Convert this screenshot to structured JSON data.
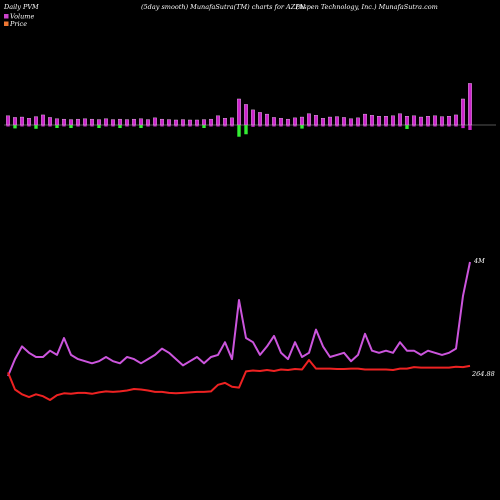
{
  "header": {
    "left": "Daily PVM",
    "center": "(5day smooth) MunafaSutra(TM) charts for AZPN",
    "right": "(Aspen Technology, Inc.) MunafaSutra.com"
  },
  "legend": {
    "volume": "Volume",
    "price": "Price",
    "volume_color": "#cc44cc",
    "price_color": "#ee7733"
  },
  "colors": {
    "background": "#000000",
    "bar_up": "#cc22cc",
    "bar_down": "#33ee33",
    "volume_line": "#cc55dd",
    "price_line": "#ee2222",
    "baseline": "#aaaaaa"
  },
  "chart_data": {
    "type": "line",
    "series": [
      {
        "name": "Volume",
        "unit": "M",
        "label_last": "4M",
        "values": [
          1.3,
          1.7,
          2.0,
          1.85,
          1.75,
          1.75,
          1.9,
          1.8,
          2.2,
          1.8,
          1.7,
          1.65,
          1.6,
          1.65,
          1.75,
          1.65,
          1.6,
          1.75,
          1.7,
          1.6,
          1.7,
          1.8,
          1.95,
          1.85,
          1.7,
          1.55,
          1.65,
          1.75,
          1.6,
          1.75,
          1.8,
          2.1,
          1.7,
          3.1,
          2.2,
          2.1,
          1.8,
          2.0,
          2.25,
          1.85,
          1.7,
          2.1,
          1.75,
          1.85,
          2.4,
          2.0,
          1.75,
          1.8,
          1.85,
          1.65,
          1.8,
          2.3,
          1.9,
          1.85,
          1.9,
          1.85,
          2.1,
          1.9,
          1.9,
          1.8,
          1.9,
          1.85,
          1.8,
          1.85,
          1.95,
          3.2,
          4.0
        ]
      },
      {
        "name": "Price",
        "label_last": "264.88",
        "values": [
          264.2,
          262.4,
          261.9,
          261.6,
          261.9,
          261.7,
          261.3,
          261.8,
          262.0,
          261.95,
          262.05,
          262.05,
          261.95,
          262.1,
          262.2,
          262.15,
          262.2,
          262.3,
          262.45,
          262.4,
          262.3,
          262.15,
          262.15,
          262.05,
          262.0,
          262.05,
          262.1,
          262.15,
          262.15,
          262.2,
          262.9,
          263.1,
          262.7,
          262.6,
          264.3,
          264.4,
          264.35,
          264.45,
          264.35,
          264.5,
          264.45,
          264.55,
          264.5,
          265.5,
          264.6,
          264.6,
          264.6,
          264.55,
          264.55,
          264.6,
          264.6,
          264.5,
          264.5,
          264.5,
          264.5,
          264.45,
          264.6,
          264.6,
          264.75,
          264.7,
          264.7,
          264.7,
          264.7,
          264.7,
          264.8,
          264.75,
          264.88
        ]
      }
    ],
    "volume_bars": {
      "values": [
        0.22,
        0.18,
        0.19,
        0.16,
        0.2,
        0.24,
        0.18,
        0.15,
        0.14,
        0.13,
        0.14,
        0.15,
        0.14,
        0.13,
        0.15,
        0.13,
        0.14,
        0.13,
        0.14,
        0.15,
        0.13,
        0.17,
        0.14,
        0.13,
        0.12,
        0.13,
        0.12,
        0.12,
        0.13,
        0.14,
        0.22,
        0.16,
        0.17,
        0.62,
        0.49,
        0.36,
        0.3,
        0.26,
        0.18,
        0.16,
        0.14,
        0.17,
        0.19,
        0.27,
        0.23,
        0.16,
        0.19,
        0.2,
        0.18,
        0.15,
        0.17,
        0.26,
        0.23,
        0.21,
        0.21,
        0.22,
        0.27,
        0.21,
        0.22,
        0.19,
        0.21,
        0.22,
        0.2,
        0.21,
        0.24,
        0.62,
        0.99
      ],
      "direction": [
        "up",
        "down",
        "up",
        "up",
        "down",
        "up",
        "up",
        "down",
        "up",
        "down",
        "up",
        "up",
        "up",
        "down",
        "up",
        "up",
        "down",
        "up",
        "up",
        "down",
        "up",
        "up",
        "up",
        "up",
        "up",
        "up",
        "up",
        "up",
        "down",
        "up",
        "up",
        "up",
        "up",
        "down",
        "down",
        "up",
        "up",
        "up",
        "up",
        "up",
        "up",
        "up",
        "down",
        "up",
        "up",
        "up",
        "up",
        "up",
        "up",
        "up",
        "up",
        "up",
        "up",
        "up",
        "up",
        "up",
        "up",
        "down",
        "up",
        "up",
        "up",
        "up",
        "up",
        "up",
        "up",
        "up",
        "up"
      ]
    },
    "title": "",
    "xlabel": "",
    "ylabel": "",
    "grid": false
  }
}
